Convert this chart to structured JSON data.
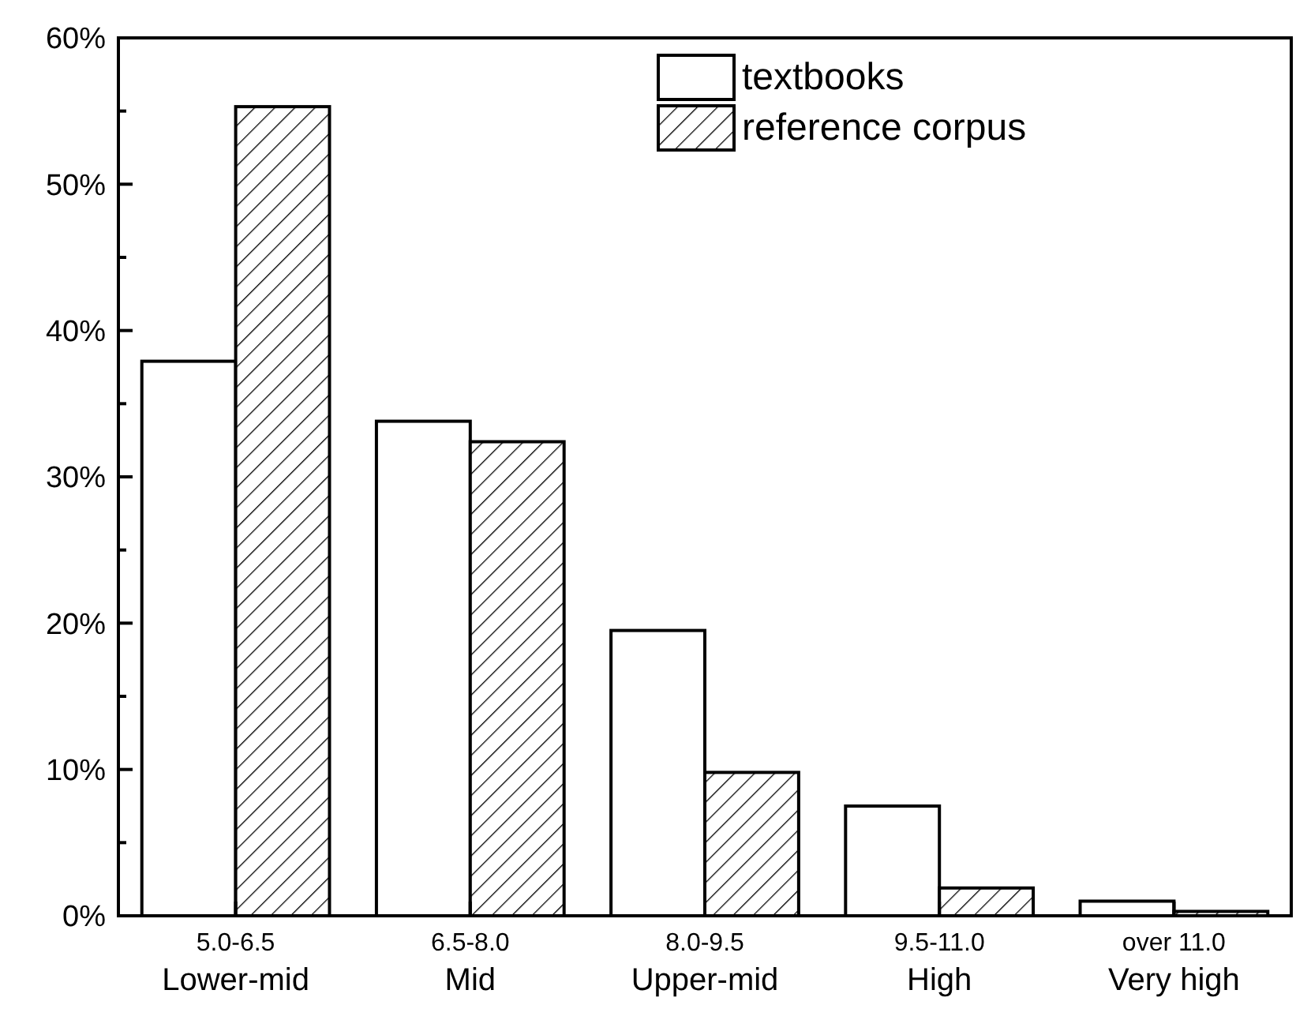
{
  "chart_data": {
    "type": "bar",
    "categories": [
      "5.0-6.5\nLower-mid",
      "6.5-8.0\nMid",
      "8.0-9.5\nUpper-mid",
      "9.5-11.0\nHigh",
      "over 11.0\nVery high"
    ],
    "series": [
      {
        "name": "textbooks",
        "color": "#ffffff",
        "values": [
          37.9,
          33.8,
          19.5,
          7.5,
          1.0
        ]
      },
      {
        "name": "reference corpus",
        "color": "#000000",
        "values": [
          55.3,
          32.4,
          9.8,
          1.9,
          0.3
        ]
      }
    ],
    "ylim": [
      0,
      60
    ],
    "yticks": [
      {
        "value": 0,
        "label": "0%"
      },
      {
        "value": 10,
        "label": "10%"
      },
      {
        "value": 20,
        "label": "20%"
      },
      {
        "value": 30,
        "label": "30%"
      },
      {
        "value": 40,
        "label": "40%"
      },
      {
        "value": 50,
        "label": "50%"
      },
      {
        "value": 60,
        "label": "60%"
      }
    ],
    "grid": false,
    "legend": "top right"
  }
}
